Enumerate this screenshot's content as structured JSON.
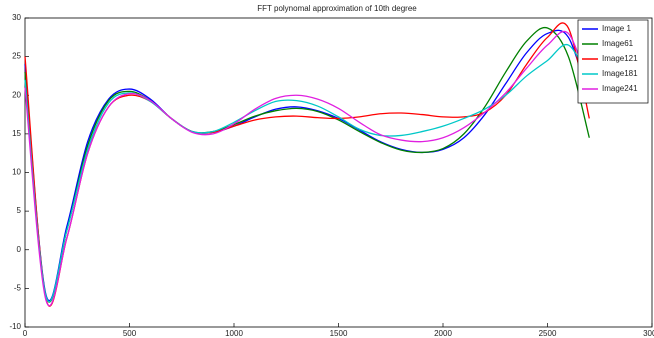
{
  "chart_data": {
    "type": "line",
    "title": "FFT polynomal approximation of 10th degree",
    "x": [
      0,
      100,
      200,
      300,
      400,
      500,
      600,
      700,
      800,
      900,
      1000,
      1100,
      1200,
      1300,
      1400,
      1500,
      1600,
      1700,
      1800,
      1900,
      2000,
      2100,
      2200,
      2300,
      2400,
      2500,
      2600,
      2700
    ],
    "series": [
      {
        "name": "Image 1",
        "color": "#0000ff",
        "values": [
          24,
          -5.8,
          3,
          14,
          19.5,
          20.8,
          19.5,
          17,
          15.3,
          15.2,
          16,
          17.2,
          18.2,
          18.5,
          18,
          17,
          15.5,
          14,
          13,
          12.6,
          13,
          14.5,
          17.5,
          21.5,
          25.5,
          28,
          27.5,
          19.5
        ]
      },
      {
        "name": "Image61",
        "color": "#008000",
        "values": [
          23,
          -6,
          2.5,
          13.5,
          19.3,
          20.5,
          19.3,
          17,
          15.3,
          15.3,
          16.2,
          17.3,
          18,
          18.3,
          17.9,
          16.8,
          15.3,
          13.9,
          12.9,
          12.6,
          13.1,
          15,
          18.5,
          23,
          27,
          28.7,
          25,
          14.5
        ]
      },
      {
        "name": "Image121",
        "color": "#ff0000",
        "values": [
          25,
          -6.3,
          1.5,
          12.5,
          18.5,
          20,
          19.2,
          17,
          15.3,
          15.2,
          16,
          16.8,
          17.2,
          17.3,
          17.1,
          17,
          17.2,
          17.6,
          17.7,
          17.5,
          17.2,
          17.2,
          17.8,
          20,
          24,
          27.5,
          28.7,
          17
        ]
      },
      {
        "name": "Image181",
        "color": "#00c8c8",
        "values": [
          22,
          -6,
          2.5,
          13,
          19,
          20.3,
          19.2,
          17,
          15.3,
          15.3,
          16.5,
          18,
          19.2,
          19.3,
          18.6,
          17.2,
          15.6,
          14.8,
          14.8,
          15.3,
          16,
          17,
          18.2,
          20,
          22.5,
          24.5,
          26.5,
          22
        ]
      },
      {
        "name": "Image241",
        "color": "#e020e0",
        "values": [
          21,
          -6.5,
          1.5,
          12.5,
          18.5,
          20.2,
          19.3,
          17,
          15.2,
          15,
          16.3,
          18.2,
          19.6,
          20,
          19.5,
          18.3,
          16.5,
          14.9,
          14.2,
          14,
          14.5,
          15.8,
          17.8,
          20.3,
          23.5,
          26.5,
          28,
          21
        ]
      }
    ],
    "xlim": [
      0,
      3000
    ],
    "xticks": [
      0,
      500,
      1000,
      1500,
      2000,
      2500,
      3000
    ],
    "ylim": [
      -10,
      30
    ],
    "yticks": [
      -10,
      -5,
      0,
      5,
      10,
      15,
      20,
      25,
      30
    ],
    "legend": "top-right"
  }
}
